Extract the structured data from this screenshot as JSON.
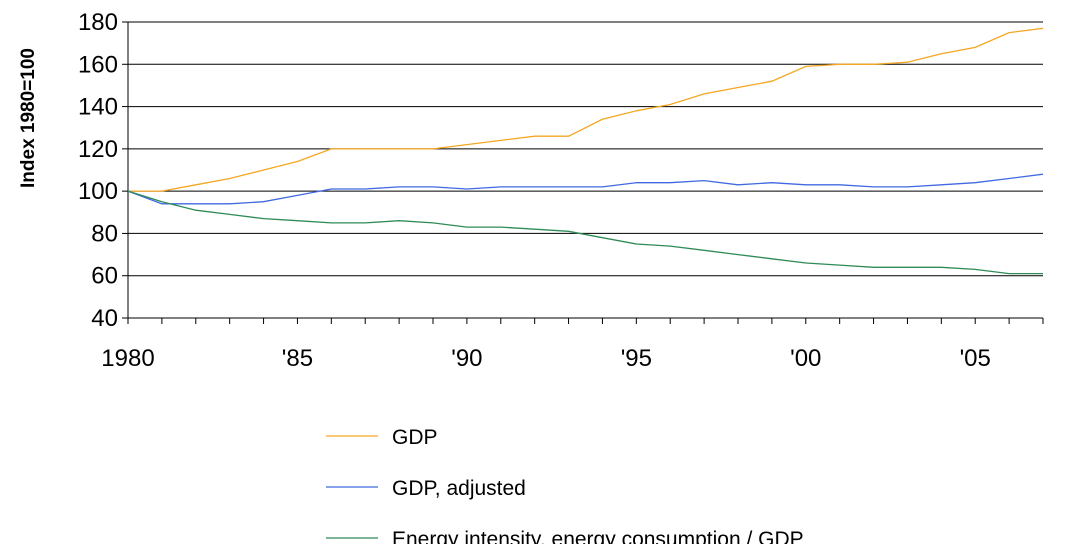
{
  "chart_data": {
    "type": "line",
    "title": "",
    "xlabel": "",
    "ylabel": "Index 1980=100",
    "xlim": [
      1980,
      2007
    ],
    "ylim": [
      40,
      180
    ],
    "x_ticks": [
      {
        "value": 1980,
        "label": "1980"
      },
      {
        "value": 1985,
        "label": "'85"
      },
      {
        "value": 1990,
        "label": "'90"
      },
      {
        "value": 1995,
        "label": "'95"
      },
      {
        "value": 2000,
        "label": "'00"
      },
      {
        "value": 2005,
        "label": "'05"
      }
    ],
    "y_ticks": [
      40,
      60,
      80,
      100,
      120,
      140,
      160,
      180
    ],
    "grid": "horizontal",
    "legend_position": "bottom",
    "x": [
      1980,
      1981,
      1982,
      1983,
      1984,
      1985,
      1986,
      1987,
      1988,
      1989,
      1990,
      1991,
      1992,
      1993,
      1994,
      1995,
      1996,
      1997,
      1998,
      1999,
      2000,
      2001,
      2002,
      2003,
      2004,
      2005,
      2006,
      2007
    ],
    "series": [
      {
        "name": "GDP",
        "color": "#F5A623",
        "values": [
          100,
          100,
          103,
          106,
          110,
          114,
          120,
          120,
          120,
          120,
          122,
          124,
          126,
          126,
          134,
          138,
          141,
          146,
          149,
          152,
          159,
          160,
          160,
          161,
          165,
          168,
          175,
          177
        ]
      },
      {
        "name": "GDP, adjusted",
        "color": "#4169E1",
        "values": [
          100,
          94,
          94,
          94,
          95,
          98,
          101,
          101,
          102,
          102,
          101,
          102,
          102,
          102,
          102,
          104,
          104,
          105,
          103,
          104,
          103,
          103,
          102,
          102,
          103,
          104,
          106,
          108
        ]
      },
      {
        "name": "Energy intensity, energy consumption / GDP",
        "color": "#2E8B57",
        "values": [
          100,
          95,
          91,
          89,
          87,
          86,
          85,
          85,
          86,
          85,
          83,
          83,
          82,
          81,
          78,
          75,
          74,
          72,
          70,
          68,
          66,
          65,
          64,
          64,
          64,
          63,
          61,
          61
        ]
      }
    ]
  }
}
